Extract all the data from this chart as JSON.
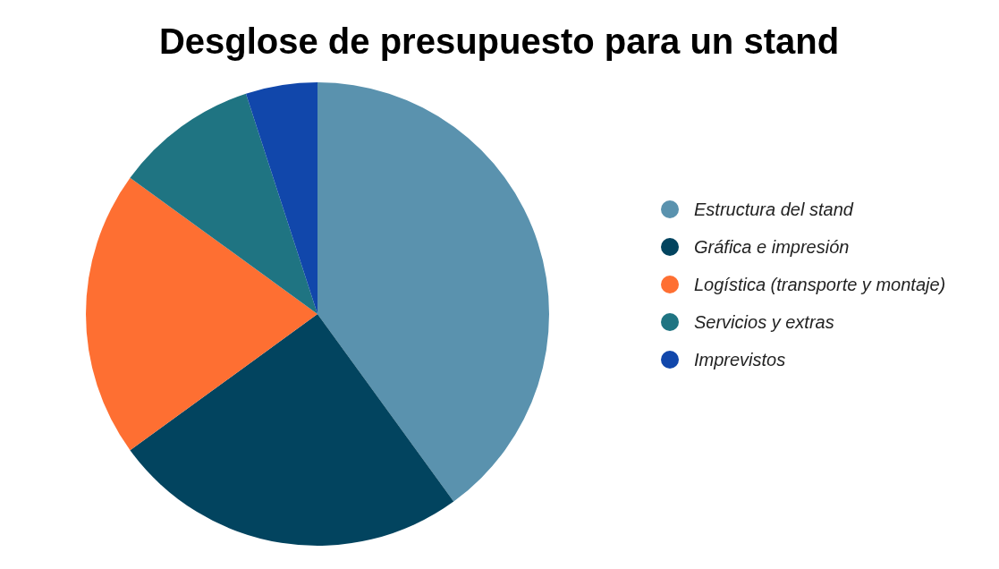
{
  "chart_data": {
    "type": "pie",
    "title": "Desglose de presupuesto para un stand",
    "categories": [
      "Estructura del stand",
      "Gráfica e impresión",
      "Logística (transporte y montaje)",
      "Servicios y extras",
      "Imprevistos"
    ],
    "values": [
      40,
      25,
      20,
      10,
      5
    ],
    "colors": [
      "#5a92ae",
      "#02445f",
      "#fe6f32",
      "#1f7482",
      "#1147ab"
    ],
    "legend": "right"
  }
}
